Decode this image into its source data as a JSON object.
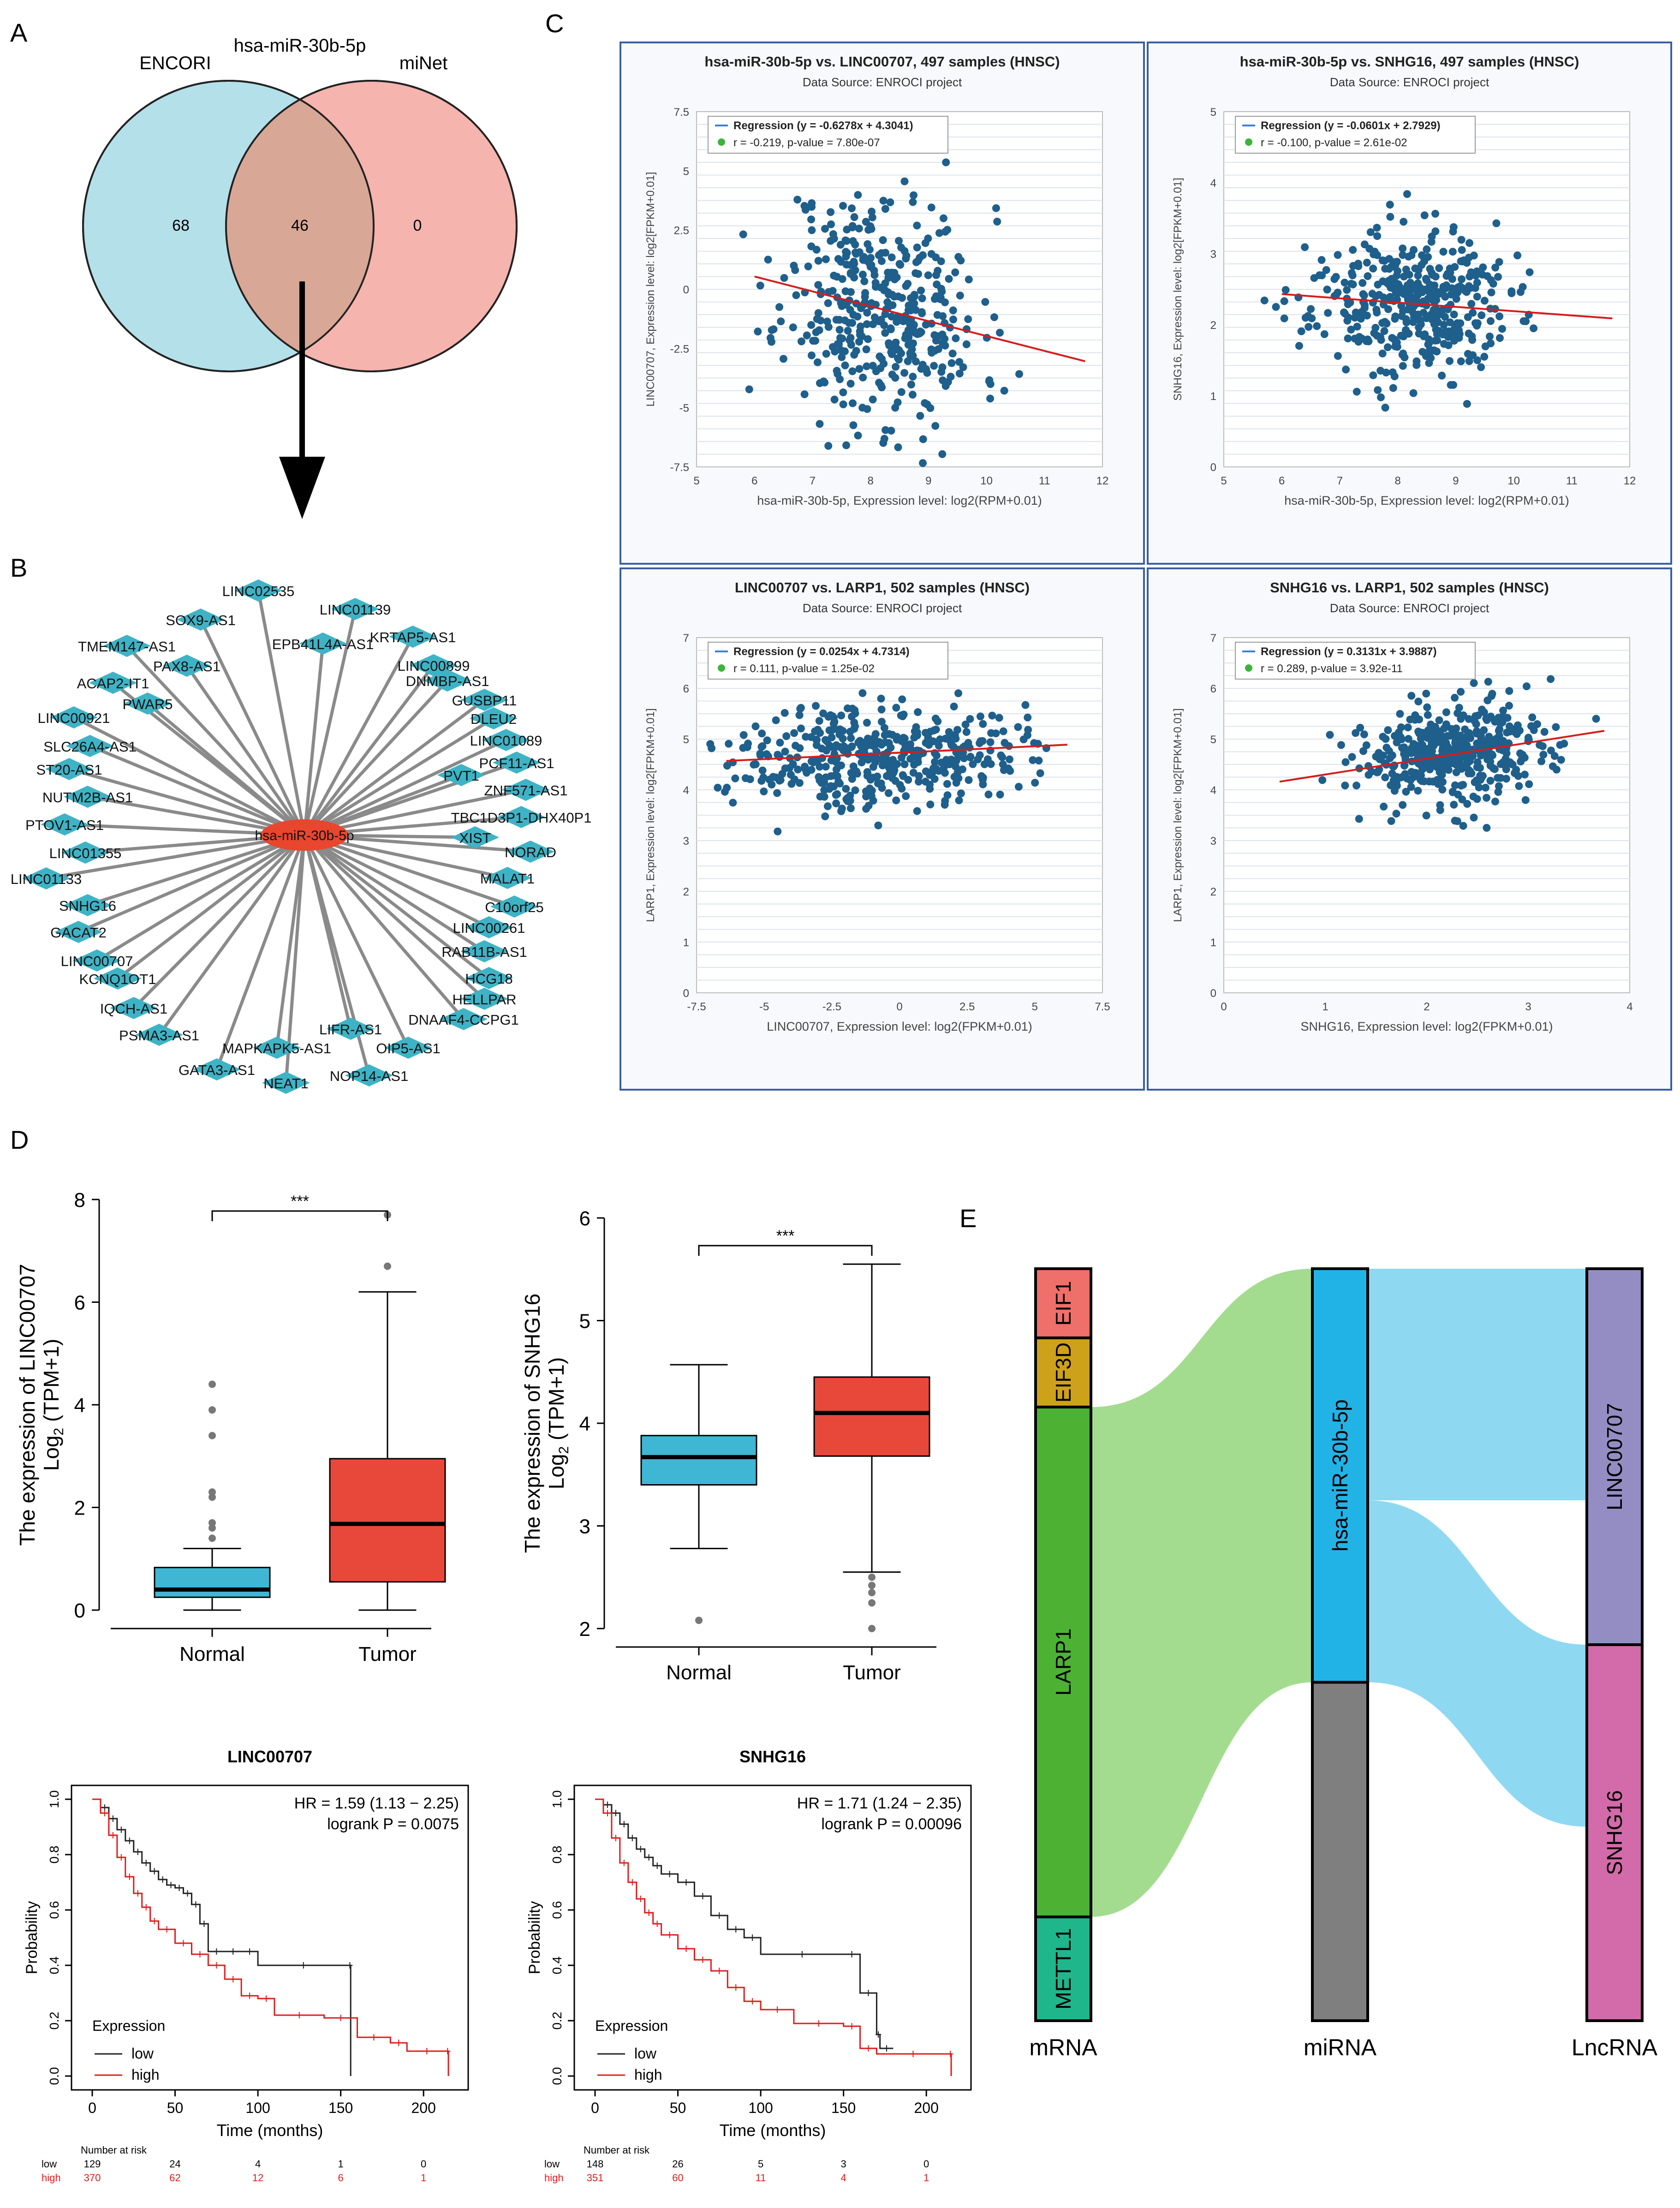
{
  "panels": {
    "A": "A",
    "B": "B",
    "C": "C",
    "D": "D",
    "E": "E"
  },
  "colors": {
    "cyan": "#b4e0ea",
    "salmon": "#f5b4ae",
    "overlap": "#d9a796",
    "node": "#3fb3c6",
    "hub": "#e8462e",
    "dot": "#1f5f8b",
    "fit": "#d61c1c",
    "box_normal": "#3fb6d3",
    "box_tumor": "#e8483a",
    "km_low": "#222222",
    "km_high": "#e01b1b",
    "s_eif1": "#ef6f6a",
    "s_eif3d": "#cda11a",
    "s_larp1": "#4db234",
    "s_mettl1": "#1fb68c",
    "s_mir": "#22b3e6",
    "s_gray": "#7f7f7f",
    "s_linc": "#938dc3",
    "s_snhg": "#d36aa9",
    "flow_green": "#a3dc8f",
    "flow_blue": "#8fd8f1"
  },
  "venn": {
    "title": "hsa-miR-30b-5p",
    "left_label": "ENCORI",
    "right_label": "miNet",
    "left_only": "68",
    "both": "46",
    "right_only": "0"
  },
  "network": {
    "hub": "hsa-miR-30b-5p",
    "nodes": [
      "LINC02535",
      "LINC01139",
      "SOX9-AS1",
      "KRTAP5-AS1",
      "EPB41L4A-AS1",
      "TMEM147-AS1",
      "PAX8-AS1",
      "LINC00899",
      "DNMBP-AS1",
      "ACAP2-IT1",
      "PWAR5",
      "GUSBP11",
      "LINC00921",
      "DLEU2",
      "LINC01089",
      "SLC26A4-AS1",
      "PCF11-AS1",
      "ST20-AS1",
      "PVT1",
      "ZNF571-AS1",
      "NUTM2B-AS1",
      "TBC1D3P1-DHX40P1",
      "PTOV1-AS1",
      "XIST",
      "NORAD",
      "LINC01355",
      "MALAT1",
      "LINC01133",
      "C10orf25",
      "SNHG16",
      "LINC00261",
      "GACAT2",
      "RAB11B-AS1",
      "LINC00707",
      "HCG18",
      "KCNQ1OT1",
      "HELLPAR",
      "IQCH-AS1",
      "DNAAF4-CCPG1",
      "PSMA3-AS1",
      "LIFR-AS1",
      "MAPKAPK5-AS1",
      "OIP5-AS1",
      "GATA3-AS1",
      "NOP14-AS1",
      "NEAT1"
    ]
  },
  "chart_data": [
    {
      "type": "scatter",
      "id": "c1",
      "title": "hsa-miR-30b-5p vs. LINC00707, 497 samples (HNSC)",
      "subtitle": "Data Source: ENROCI project",
      "legend_line1": "Regression (y = -0.6278x + 4.3041)",
      "legend_line2": "r = -0.219, p-value = 7.80e-07",
      "xlabel": "hsa-miR-30b-5p, Expression level: log2(RPM+0.01)",
      "ylabel": "LINC00707, Expression level: log2[FPKM+0.01]",
      "xlim": [
        5,
        12
      ],
      "ylim": [
        -7.5,
        7.5
      ],
      "xticks": [
        "5",
        "6",
        "7",
        "8",
        "9",
        "10",
        "11",
        "12"
      ],
      "yticks": [
        "-7.5",
        "-5",
        "-2.5",
        "0",
        "2.5",
        "5",
        "7.5"
      ],
      "slope": -0.6278,
      "intercept": 4.3041,
      "x_center": 8.2,
      "x_sd": 0.85,
      "y_center": -0.8,
      "y_sd": 2.5,
      "n": 420,
      "seed": 11,
      "fit_x": [
        6,
        11.7
      ]
    },
    {
      "type": "scatter",
      "id": "c2",
      "title": "hsa-miR-30b-5p vs. SNHG16, 497 samples (HNSC)",
      "subtitle": "Data Source: ENROCI project",
      "legend_line1": "Regression (y = -0.0601x + 2.7929)",
      "legend_line2": "r = -0.100, p-value = 2.61e-02",
      "xlabel": "hsa-miR-30b-5p, Expression level: log2(RPM+0.01)",
      "ylabel": "SNHG16, Expression level: log2[FPKM+0.01]",
      "xlim": [
        5,
        12
      ],
      "ylim": [
        0,
        5
      ],
      "xticks": [
        "5",
        "6",
        "7",
        "8",
        "9",
        "10",
        "11",
        "12"
      ],
      "yticks": [
        "0",
        "1",
        "2",
        "3",
        "4",
        "5"
      ],
      "slope": -0.0601,
      "intercept": 2.7929,
      "x_center": 8.2,
      "x_sd": 0.85,
      "y_center": 2.3,
      "y_sd": 0.5,
      "n": 420,
      "seed": 23,
      "fit_x": [
        6,
        11.7
      ]
    },
    {
      "type": "scatter",
      "id": "c3",
      "title": "LINC00707 vs. LARP1, 502 samples (HNSC)",
      "subtitle": "Data Source: ENROCI project",
      "legend_line1": "Regression (y = 0.0254x + 4.7314)",
      "legend_line2": "r = 0.111, p-value = 1.25e-02",
      "xlabel": "LINC00707, Expression level: log2(FPKM+0.01)",
      "ylabel": "LARP1, Expression level: log2[FPKM+0.01]",
      "xlim": [
        -7.5,
        7.5
      ],
      "ylim": [
        0,
        7
      ],
      "xticks": [
        "-7.5",
        "-5",
        "-2.5",
        "0",
        "2.5",
        "5",
        "7.5"
      ],
      "yticks": [
        "0",
        "1",
        "2",
        "3",
        "4",
        "5",
        "6",
        "7"
      ],
      "slope": 0.0254,
      "intercept": 4.7314,
      "x_center": -0.8,
      "x_sd": 2.6,
      "y_center": 4.7,
      "y_sd": 0.5,
      "n": 430,
      "seed": 37,
      "fit_x": [
        -6.4,
        6.2
      ]
    },
    {
      "type": "scatter",
      "id": "c4",
      "title": "SNHG16 vs. LARP1, 502 samples (HNSC)",
      "subtitle": "Data Source: ENROCI project",
      "legend_line1": "Regression (y = 0.3131x + 3.9887)",
      "legend_line2": "r = 0.289, p-value = 3.92e-11",
      "xlabel": "SNHG16, Expression level: log2(FPKM+0.01)",
      "ylabel": "LARP1, Expression level: log2[FPKM+0.01]",
      "xlim": [
        0,
        4
      ],
      "ylim": [
        0,
        7
      ],
      "xticks": [
        "0",
        "1",
        "2",
        "3",
        "4"
      ],
      "yticks": [
        "0",
        "1",
        "2",
        "3",
        "4",
        "5",
        "6",
        "7"
      ],
      "slope": 0.3131,
      "intercept": 3.9887,
      "x_center": 2.3,
      "x_sd": 0.5,
      "y_center": 4.7,
      "y_sd": 0.5,
      "n": 430,
      "seed": 53,
      "fit_x": [
        0.55,
        3.75
      ]
    },
    {
      "type": "box",
      "id": "d1",
      "ylabel_line1": "The expression of LINC00707",
      "ylabel_line2": "Log",
      "ylabel_sub": "2",
      "ylabel_tail": " (TPM+1)",
      "sig": "***",
      "ylim": [
        0,
        8
      ],
      "yticks": [
        "0",
        "2",
        "4",
        "6",
        "8"
      ],
      "groups": [
        {
          "label": "Normal",
          "q1": 0.25,
          "median": 0.4,
          "q3": 0.83,
          "wlow": 0.0,
          "whigh": 1.2,
          "outliers": [
            1.4,
            1.6,
            1.7,
            2.2,
            2.3,
            3.4,
            3.9,
            4.4
          ]
        },
        {
          "label": "Tumor",
          "q1": 0.55,
          "median": 1.68,
          "q3": 2.95,
          "wlow": 0.0,
          "whigh": 6.2,
          "outliers": [
            6.7,
            7.7
          ]
        }
      ]
    },
    {
      "type": "box",
      "id": "d2",
      "ylabel_line1": "The expression of SNHG16",
      "ylabel_line2": "Log",
      "ylabel_sub": "2",
      "ylabel_tail": " (TPM+1)",
      "sig": "***",
      "ylim": [
        2,
        6
      ],
      "yticks": [
        "2",
        "3",
        "4",
        "5",
        "6"
      ],
      "groups": [
        {
          "label": "Normal",
          "q1": 3.4,
          "median": 3.67,
          "q3": 3.88,
          "wlow": 2.78,
          "whigh": 4.57,
          "outliers": [
            2.08
          ]
        },
        {
          "label": "Tumor",
          "q1": 3.68,
          "median": 4.1,
          "q3": 4.45,
          "wlow": 2.55,
          "whigh": 5.55,
          "outliers": [
            2.0,
            2.25,
            2.35,
            2.42,
            2.5
          ]
        }
      ]
    },
    {
      "type": "km",
      "id": "k1",
      "title": "LINC00707",
      "hr": "HR = 1.59 (1.13 − 2.25)",
      "logrank": "logrank P = 0.0075",
      "xlabel": "Time (months)",
      "ylabel": "Probability",
      "xlim": [
        0,
        220
      ],
      "ylim": [
        0,
        1
      ],
      "xticks": [
        "0",
        "50",
        "100",
        "150",
        "200"
      ],
      "yticks": [
        "0.0",
        "0.2",
        "0.4",
        "0.6",
        "0.8",
        "1.0"
      ],
      "legend_title": "Expression",
      "legend_low": "low",
      "legend_high": "high",
      "risk_title": "Number at risk",
      "risk_low_label": "low",
      "risk_high_label": "high",
      "risk_low": [
        "129",
        "24",
        "4",
        "1",
        "0"
      ],
      "risk_high": [
        "370",
        "62",
        "12",
        "6",
        "1"
      ],
      "low_curve": [
        [
          0,
          1
        ],
        [
          5,
          0.97
        ],
        [
          10,
          0.93
        ],
        [
          15,
          0.89
        ],
        [
          20,
          0.85
        ],
        [
          25,
          0.81
        ],
        [
          30,
          0.77
        ],
        [
          35,
          0.74
        ],
        [
          40,
          0.71
        ],
        [
          45,
          0.69
        ],
        [
          50,
          0.68
        ],
        [
          55,
          0.66
        ],
        [
          60,
          0.62
        ],
        [
          65,
          0.55
        ],
        [
          70,
          0.45
        ],
        [
          80,
          0.45
        ],
        [
          90,
          0.45
        ],
        [
          100,
          0.4
        ],
        [
          155,
          0.4
        ],
        [
          156,
          0.0
        ]
      ],
      "high_curve": [
        [
          0,
          1
        ],
        [
          5,
          0.95
        ],
        [
          10,
          0.87
        ],
        [
          15,
          0.79
        ],
        [
          20,
          0.72
        ],
        [
          25,
          0.66
        ],
        [
          30,
          0.61
        ],
        [
          35,
          0.56
        ],
        [
          40,
          0.53
        ],
        [
          50,
          0.48
        ],
        [
          60,
          0.44
        ],
        [
          70,
          0.4
        ],
        [
          80,
          0.35
        ],
        [
          90,
          0.29
        ],
        [
          100,
          0.28
        ],
        [
          110,
          0.22
        ],
        [
          140,
          0.21
        ],
        [
          160,
          0.14
        ],
        [
          180,
          0.12
        ],
        [
          190,
          0.09
        ],
        [
          214,
          0.09
        ],
        [
          215,
          0.0
        ]
      ]
    },
    {
      "type": "km",
      "id": "k2",
      "title": "SNHG16",
      "hr": "HR = 1.71 (1.24 − 2.35)",
      "logrank": "logrank P = 0.00096",
      "xlabel": "Time (months)",
      "ylabel": "Probability",
      "xlim": [
        0,
        220
      ],
      "ylim": [
        0,
        1
      ],
      "xticks": [
        "0",
        "50",
        "100",
        "150",
        "200"
      ],
      "yticks": [
        "0.0",
        "0.2",
        "0.4",
        "0.6",
        "0.8",
        "1.0"
      ],
      "legend_title": "Expression",
      "legend_low": "low",
      "legend_high": "high",
      "risk_title": "Number at risk",
      "risk_low_label": "low",
      "risk_high_label": "high",
      "risk_low": [
        "148",
        "26",
        "5",
        "3",
        "0"
      ],
      "risk_high": [
        "351",
        "60",
        "11",
        "4",
        "1"
      ],
      "low_curve": [
        [
          0,
          1
        ],
        [
          5,
          0.98
        ],
        [
          10,
          0.95
        ],
        [
          15,
          0.91
        ],
        [
          20,
          0.86
        ],
        [
          25,
          0.82
        ],
        [
          30,
          0.79
        ],
        [
          35,
          0.76
        ],
        [
          40,
          0.73
        ],
        [
          50,
          0.7
        ],
        [
          60,
          0.65
        ],
        [
          70,
          0.58
        ],
        [
          80,
          0.53
        ],
        [
          90,
          0.5
        ],
        [
          100,
          0.44
        ],
        [
          150,
          0.44
        ],
        [
          160,
          0.3
        ],
        [
          170,
          0.15
        ],
        [
          172,
          0.1
        ],
        [
          180,
          0.1
        ]
      ],
      "high_curve": [
        [
          0,
          1
        ],
        [
          5,
          0.95
        ],
        [
          10,
          0.86
        ],
        [
          15,
          0.77
        ],
        [
          20,
          0.7
        ],
        [
          25,
          0.64
        ],
        [
          30,
          0.59
        ],
        [
          35,
          0.55
        ],
        [
          40,
          0.51
        ],
        [
          50,
          0.46
        ],
        [
          60,
          0.42
        ],
        [
          70,
          0.38
        ],
        [
          80,
          0.32
        ],
        [
          90,
          0.27
        ],
        [
          100,
          0.24
        ],
        [
          120,
          0.19
        ],
        [
          150,
          0.18
        ],
        [
          160,
          0.1
        ],
        [
          170,
          0.08
        ],
        [
          214,
          0.08
        ],
        [
          215,
          0.0
        ]
      ]
    },
    {
      "type": "sankey",
      "id": "e1",
      "columns": [
        "mRNA",
        "miRNA",
        "LncRNA"
      ],
      "left": [
        {
          "label": "EIF1",
          "share": 0.092
        },
        {
          "label": "EIF3D",
          "share": 0.092
        },
        {
          "label": "LARP1",
          "share": 0.678
        },
        {
          "label": "METTL1",
          "share": 0.138
        }
      ],
      "middle": [
        {
          "label": "hsa-miR-30b-5p",
          "share": 0.55
        },
        {
          "label": "",
          "share": 0.45
        }
      ],
      "right": [
        {
          "label": "LINC00707",
          "share": 0.5
        },
        {
          "label": "SNHG16",
          "share": 0.5
        }
      ]
    }
  ]
}
